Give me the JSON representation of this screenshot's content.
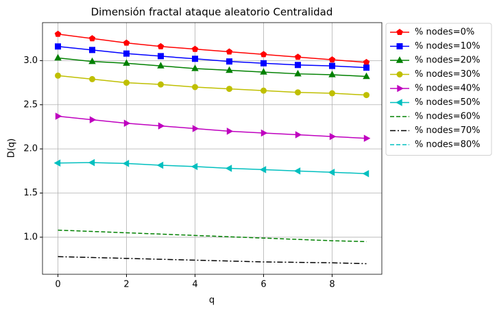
{
  "chart_data": {
    "type": "line",
    "title": "Dimensión fractal ataque aleatorio Centralidad",
    "xlabel": "q",
    "ylabel": "D(q)",
    "x": [
      0,
      1,
      2,
      3,
      4,
      5,
      6,
      7,
      8,
      9
    ],
    "series": [
      {
        "name": "% nodes=0%",
        "color": "#ff0000",
        "marker": "pentagon",
        "dash": "solid",
        "values": [
          3.3,
          3.25,
          3.2,
          3.16,
          3.13,
          3.1,
          3.07,
          3.04,
          3.01,
          2.98
        ]
      },
      {
        "name": "% nodes=10%",
        "color": "#0000ff",
        "marker": "square",
        "dash": "solid",
        "values": [
          3.16,
          3.12,
          3.08,
          3.05,
          3.02,
          2.99,
          2.97,
          2.95,
          2.94,
          2.92
        ]
      },
      {
        "name": "% nodes=20%",
        "color": "#008000",
        "marker": "triangle-up",
        "dash": "solid",
        "values": [
          3.03,
          2.99,
          2.97,
          2.94,
          2.91,
          2.89,
          2.87,
          2.85,
          2.84,
          2.82
        ]
      },
      {
        "name": "% nodes=30%",
        "color": "#bfbf00",
        "marker": "circle",
        "dash": "solid",
        "values": [
          2.83,
          2.79,
          2.75,
          2.73,
          2.7,
          2.68,
          2.66,
          2.64,
          2.63,
          2.61
        ]
      },
      {
        "name": "% nodes=40%",
        "color": "#bf00bf",
        "marker": "triangle-right",
        "dash": "solid",
        "values": [
          2.37,
          2.33,
          2.29,
          2.26,
          2.23,
          2.2,
          2.18,
          2.16,
          2.14,
          2.12
        ]
      },
      {
        "name": "% nodes=50%",
        "color": "#00bfbf",
        "marker": "triangle-left",
        "dash": "solid",
        "values": [
          1.84,
          1.845,
          1.835,
          1.815,
          1.8,
          1.78,
          1.765,
          1.75,
          1.735,
          1.72
        ]
      },
      {
        "name": "% nodes=60%",
        "color": "#008000",
        "marker": "none",
        "dash": "dashed",
        "values": [
          1.08,
          1.065,
          1.05,
          1.035,
          1.02,
          1.005,
          0.99,
          0.975,
          0.96,
          0.95
        ]
      },
      {
        "name": "% nodes=70%",
        "color": "#000000",
        "marker": "none",
        "dash": "dashdot",
        "values": [
          0.78,
          0.77,
          0.76,
          0.75,
          0.74,
          0.73,
          0.72,
          0.715,
          0.71,
          0.7
        ]
      },
      {
        "name": "% nodes=80%",
        "color": "#00bfbf",
        "marker": "none",
        "dash": "dashed",
        "values": [
          null,
          null,
          null,
          null,
          null,
          null,
          null,
          null,
          null,
          null
        ]
      }
    ],
    "xlim": [
      -0.45,
      9.45
    ],
    "xticks": [
      0,
      2,
      4,
      6,
      8
    ],
    "ylim": [
      0.58,
      3.43
    ],
    "yticks": [
      {
        "value": 1.0,
        "label": "1.0"
      },
      1.5,
      {
        "value": 2.0,
        "label": "2.0"
      },
      2.5,
      {
        "value": 3.0,
        "label": "3.0"
      }
    ],
    "grid": true,
    "legend": "outside-upper-right"
  }
}
